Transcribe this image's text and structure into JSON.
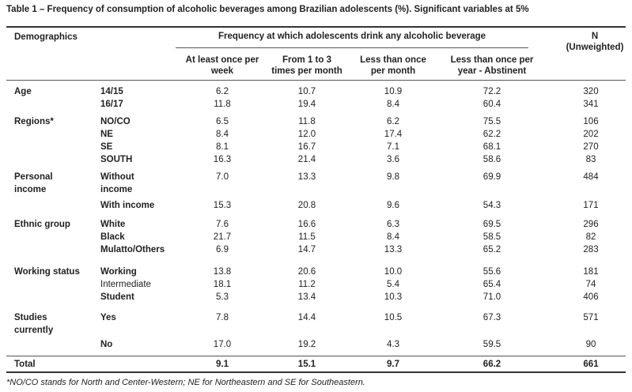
{
  "title": "Table 1 – Frequency of consumption of alcoholic beverages among Brazilian adolescents (%). Significant variables at 5%",
  "header": {
    "demographics": "Demographics",
    "frequency_group": "Frequency at  which adolescents drink any alcoholic beverage",
    "n_label": "N",
    "n_sublabel": "(Unweighted)",
    "columns": [
      [
        "At least once per",
        "week"
      ],
      [
        "From 1 to 3",
        "times per month"
      ],
      [
        "Less than once",
        "per month"
      ],
      [
        "Less than once per",
        "year -  Abstinent"
      ]
    ]
  },
  "rows": [
    {
      "category": "Age",
      "category2": "",
      "sub": "14/15",
      "sub2": "",
      "values": [
        "6.2",
        "10.7",
        "10.9",
        "72.2",
        "320"
      ]
    },
    {
      "category": "",
      "category2": "",
      "sub": "16/17",
      "sub2": "",
      "values": [
        "11.8",
        "19.4",
        "8.4",
        "60.4",
        "341"
      ]
    },
    {
      "category": "Regions*",
      "category2": "",
      "sub": "NO/CO",
      "sub2": "",
      "values": [
        "6.5",
        "11.8",
        "6.2",
        "75.5",
        "106"
      ]
    },
    {
      "category": "",
      "category2": "",
      "sub": "NE",
      "sub2": "",
      "values": [
        "8.4",
        "12.0",
        "17.4",
        "62.2",
        "202"
      ]
    },
    {
      "category": "",
      "category2": "",
      "sub": "SE",
      "sub2": "",
      "values": [
        "8.1",
        "16.7",
        "7.1",
        "68.1",
        "270"
      ]
    },
    {
      "category": "",
      "category2": "",
      "sub": "SOUTH",
      "sub2": "",
      "values": [
        "16.3",
        "21.4",
        "3.6",
        "58.6",
        "83"
      ]
    },
    {
      "category": "Personal",
      "category2": "income",
      "sub": "Without",
      "sub2": "income",
      "values": [
        "7.0",
        "13.3",
        "9.8",
        "69.9",
        "484"
      ]
    },
    {
      "category": "",
      "category2": "",
      "sub": "With income",
      "sub2": "",
      "values": [
        "15.3",
        "20.8",
        "9.6",
        "54.3",
        "171"
      ]
    },
    {
      "category": "Ethnic group",
      "category2": "",
      "sub": "White",
      "sub2": "",
      "values": [
        "7.6",
        "16.6",
        "6.3",
        "69.5",
        "296"
      ]
    },
    {
      "category": "",
      "category2": "",
      "sub": "Black",
      "sub2": "",
      "values": [
        "21.7",
        "11.5",
        "8.4",
        "58.5",
        "82"
      ]
    },
    {
      "category": "",
      "category2": "",
      "sub": "Mulatto/Others",
      "sub2": "",
      "values": [
        "6.9",
        "14.7",
        "13.3",
        "65.2",
        "283"
      ]
    },
    {
      "category": "Working status",
      "category2": "",
      "sub": "Working",
      "sub2": "",
      "values": [
        "13.8",
        "20.6",
        "10.0",
        "55.6",
        "181"
      ]
    },
    {
      "category": "",
      "category2": "",
      "sub": "Intermediate",
      "sub2": "",
      "values": [
        "18.1",
        "11.2",
        "5.4",
        "65.4",
        "74"
      ]
    },
    {
      "category": "",
      "category2": "",
      "sub": "Student",
      "sub2": "",
      "values": [
        "5.3",
        "13.4",
        "10.3",
        "71.0",
        "406"
      ]
    },
    {
      "category": "Studies",
      "category2": "currently",
      "sub": "Yes",
      "sub2": "",
      "values": [
        "7.8",
        "14.4",
        "10.5",
        "67.3",
        "571"
      ]
    },
    {
      "category": "",
      "category2": "",
      "sub": "No",
      "sub2": "",
      "values": [
        "17.0",
        "19.2",
        "4.3",
        "59.5",
        "90"
      ]
    }
  ],
  "total": {
    "label": "Total",
    "values": [
      "9.1",
      "15.1",
      "9.7",
      "66.2",
      "661"
    ]
  },
  "footnote": "*NO/CO stands for North and Center-Western; NE for Northeastern and SE for Southeastern."
}
